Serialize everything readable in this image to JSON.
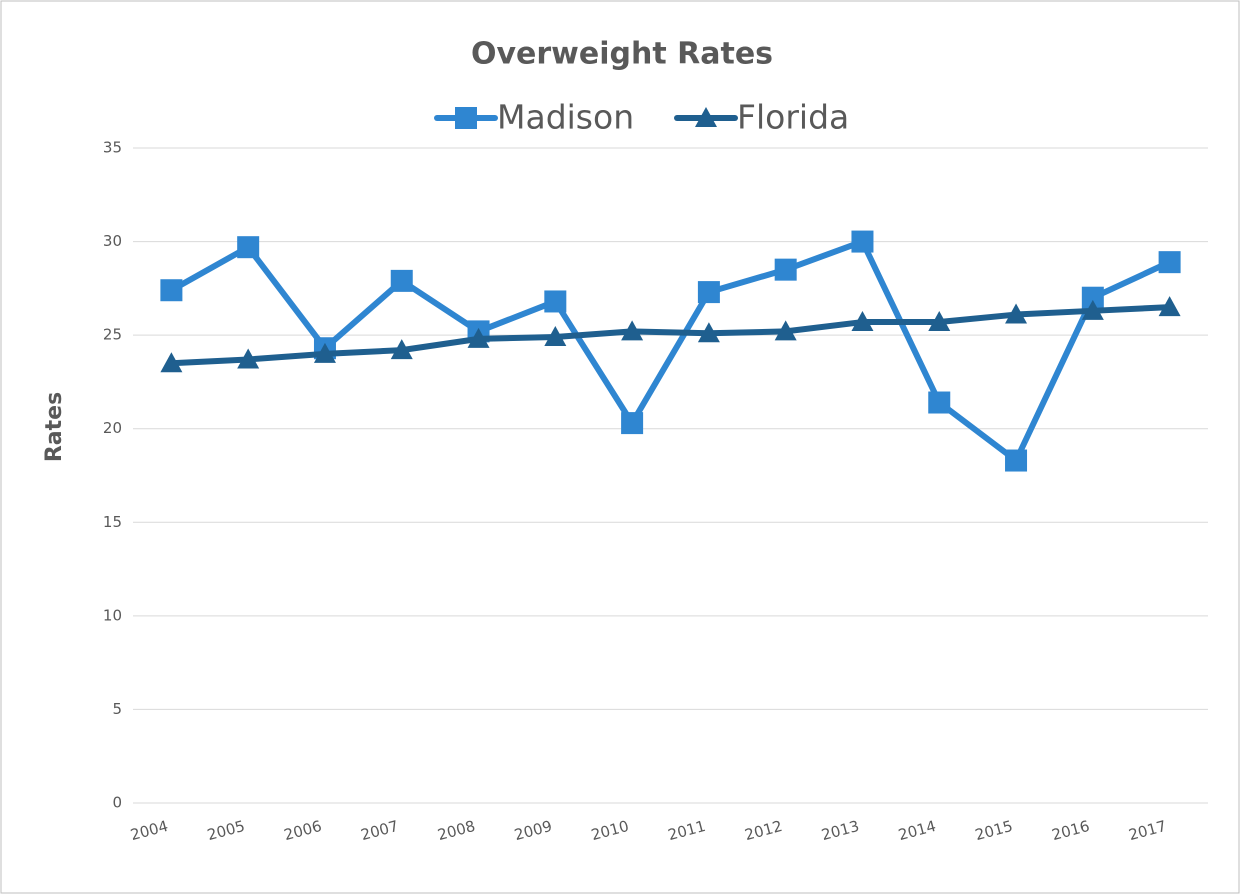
{
  "chart_data": {
    "type": "line",
    "title": "Overweight Rates",
    "ylabel": "Rates",
    "categories": [
      "2004",
      "2005",
      "2006",
      "2007",
      "2008",
      "2009",
      "2010",
      "2011",
      "2012",
      "2013",
      "2014",
      "2015",
      "2016",
      "2017"
    ],
    "series": [
      {
        "name": "Madison",
        "color": "#2f86d1",
        "marker": "square",
        "values": [
          27.4,
          29.7,
          24.3,
          27.9,
          25.2,
          26.8,
          20.3,
          27.3,
          28.5,
          30.0,
          21.4,
          18.3,
          27.0,
          28.9
        ]
      },
      {
        "name": "Florida",
        "color": "#1f5f8f",
        "marker": "triangle",
        "values": [
          23.5,
          23.7,
          24.0,
          24.2,
          24.8,
          24.9,
          25.2,
          25.1,
          25.2,
          25.7,
          25.7,
          26.1,
          26.3,
          26.5
        ]
      }
    ],
    "ylim": [
      0,
      35
    ],
    "yticks": [
      0,
      5,
      10,
      15,
      20,
      25,
      30,
      35
    ],
    "grid": true,
    "legend": "top"
  }
}
